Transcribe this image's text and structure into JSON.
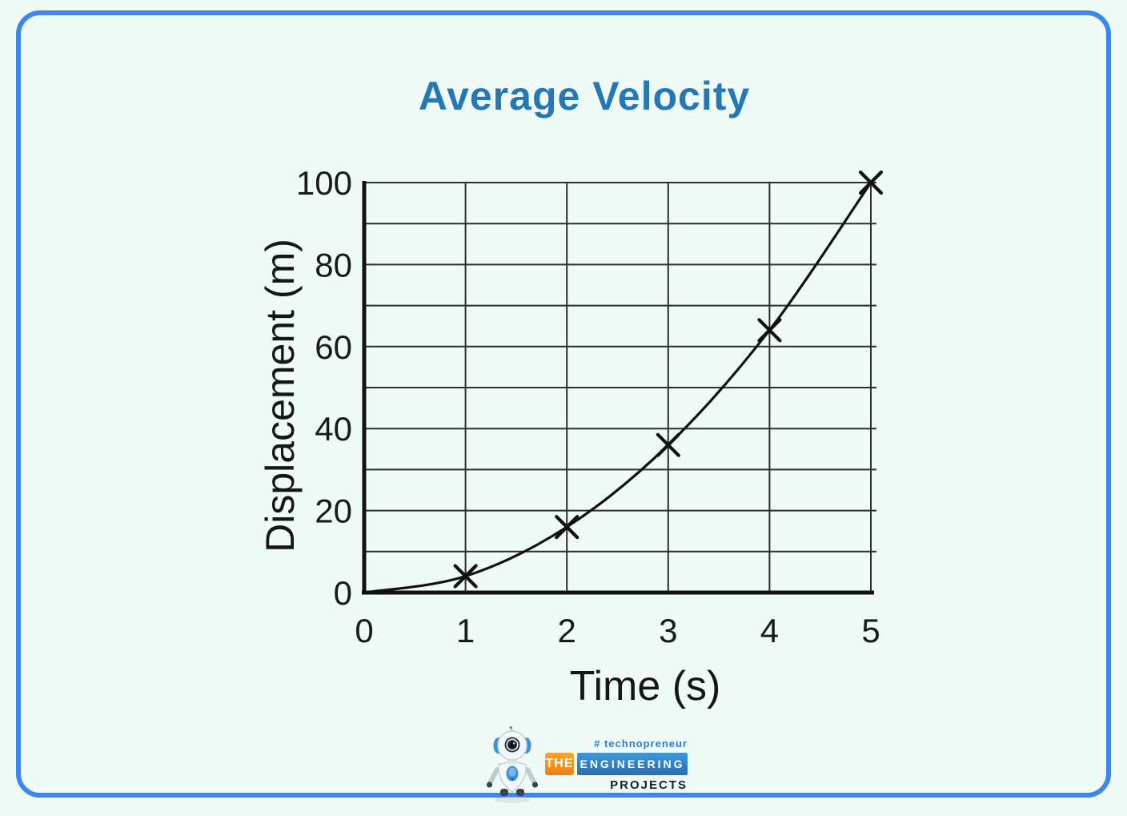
{
  "page": {
    "background_color": "#f0faf7",
    "border_color": "#3c86f1"
  },
  "chart_data": {
    "type": "line",
    "title": "Average Velocity",
    "title_color": "#2478b8",
    "xlabel": "Time (s)",
    "ylabel": "Displacement (m)",
    "x": [
      0,
      1,
      2,
      3,
      4,
      5
    ],
    "y": [
      0,
      4,
      16,
      36,
      64,
      100
    ],
    "marked_points": {
      "x": [
        1,
        2,
        3,
        4,
        5
      ],
      "y": [
        4,
        16,
        36,
        64,
        100
      ]
    },
    "xlim": [
      0,
      5
    ],
    "ylim": [
      0,
      100
    ],
    "xticks": [
      0,
      1,
      2,
      3,
      4,
      5
    ],
    "yticks": [
      0,
      20,
      40,
      60,
      80,
      100
    ],
    "x_grid_step": 1,
    "y_grid_step": 10,
    "grid": true,
    "legend": false,
    "marker": "x",
    "line_color": "#111111",
    "grid_color": "#2d2d2d",
    "axis_color": "#111111",
    "tick_color": "#1a1a1a"
  },
  "footer_logo": {
    "tagline": "# technopreneur",
    "brand_the": "THE",
    "brand_engineering": "ENGINEERING",
    "brand_projects": "PROJECTS",
    "robot_icon": "robot-mascot"
  }
}
